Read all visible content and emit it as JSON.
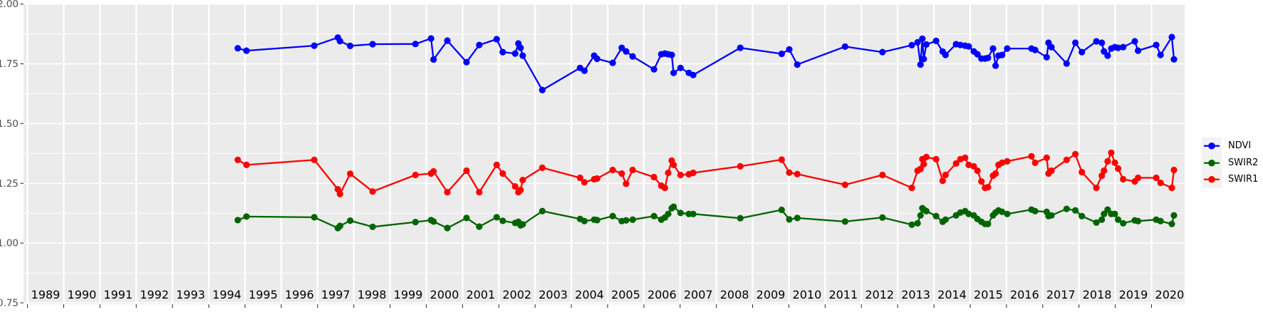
{
  "figure": {
    "title": "",
    "y_axis": {
      "tick_labels": [
        "2.00",
        "1.75",
        "1.50",
        "1.25",
        "1.00",
        "0.75"
      ],
      "tick_values": [
        2.0,
        1.75,
        1.5,
        1.25,
        1.0,
        0.75
      ]
    },
    "x_axis": {
      "year_labels": [
        "1989",
        "1990",
        "1991",
        "1992",
        "1993",
        "1994",
        "1995",
        "1996",
        "1997",
        "1998",
        "1999",
        "2000",
        "2001",
        "2002",
        "2003",
        "2004",
        "2005",
        "2006",
        "2007",
        "2008",
        "2009",
        "2010",
        "2011",
        "2012",
        "2013",
        "2014",
        "2015",
        "2016",
        "2017",
        "2018",
        "2019",
        "2020"
      ]
    },
    "legend": {
      "items": [
        {
          "label": "NDVI",
          "color": "#0000ff"
        },
        {
          "label": "SWIR2",
          "color": "#006400"
        },
        {
          "label": "SWIR1",
          "color": "#ff0000"
        }
      ]
    },
    "colors": {
      "panel_background": "#ebebeb",
      "gridline": "#ffffff",
      "axis_tick_text": "#4d4d4d",
      "year_label_text": "#000000",
      "tick_mark": "#333333",
      "legend_key_background": "#f2f2f2"
    }
  },
  "chart_data": {
    "type": "line",
    "title": "",
    "xlabel": "",
    "ylabel": "",
    "grid": "on",
    "legend_position": "right",
    "xlim": [
      1988.4,
      2020.5
    ],
    "ylim": [
      0.74,
      2.005
    ],
    "y_major_gridlines": [
      0.75,
      1.0,
      1.25,
      1.5,
      1.75,
      2.0
    ],
    "y_minor_gridlines": [
      0.875,
      1.125,
      1.375,
      1.625,
      1.875
    ],
    "x_gridlines_at_year_boundaries": true,
    "x_decimal_years": [
      1994.3,
      1994.54,
      1996.41,
      1997.06,
      1997.12,
      1997.4,
      1998.02,
      1999.2,
      1999.63,
      1999.7,
      2000.08,
      2000.61,
      2000.96,
      2001.44,
      2001.61,
      2001.95,
      2002.04,
      2002.1,
      2002.16,
      2002.7,
      2003.74,
      2003.86,
      2004.13,
      2004.21,
      2004.64,
      2004.89,
      2005.01,
      2005.19,
      2005.78,
      2005.98,
      2006.08,
      2006.17,
      2006.27,
      2006.32,
      2006.51,
      2006.74,
      2006.86,
      2008.16,
      2009.3,
      2009.51,
      2009.73,
      2011.05,
      2012.08,
      2012.89,
      2013.05,
      2013.13,
      2013.18,
      2013.22,
      2013.29,
      2013.56,
      2013.74,
      2013.82,
      2014.11,
      2014.23,
      2014.36,
      2014.46,
      2014.6,
      2014.7,
      2014.81,
      2014.91,
      2014.99,
      2015.13,
      2015.2,
      2015.28,
      2015.38,
      2015.52,
      2016.19,
      2016.29,
      2016.61,
      2016.66,
      2016.74,
      2017.16,
      2017.4,
      2017.58,
      2017.98,
      2018.13,
      2018.19,
      2018.29,
      2018.39,
      2018.49,
      2018.58,
      2018.72,
      2019.04,
      2019.13,
      2019.63,
      2019.75,
      2020.06,
      2020.12
    ],
    "series": [
      {
        "name": "NDVI",
        "color": "#0000ff",
        "values": [
          1.815,
          1.805,
          1.826,
          1.86,
          1.845,
          1.825,
          1.832,
          1.833,
          1.856,
          1.768,
          1.847,
          1.757,
          1.829,
          1.853,
          1.799,
          1.793,
          1.835,
          1.817,
          1.784,
          1.64,
          1.733,
          1.721,
          1.784,
          1.771,
          1.754,
          1.817,
          1.802,
          1.781,
          1.727,
          1.79,
          1.793,
          1.79,
          1.787,
          1.712,
          1.733,
          1.712,
          1.703,
          1.817,
          1.792,
          1.81,
          1.747,
          1.822,
          1.799,
          1.828,
          1.84,
          1.747,
          1.855,
          1.77,
          1.831,
          1.846,
          1.801,
          1.787,
          1.832,
          1.829,
          1.826,
          1.823,
          1.802,
          1.79,
          1.772,
          1.772,
          1.775,
          1.814,
          1.742,
          1.784,
          1.787,
          1.814,
          1.814,
          1.808,
          1.778,
          1.838,
          1.82,
          1.751,
          1.838,
          1.799,
          1.844,
          1.838,
          1.802,
          1.784,
          1.814,
          1.82,
          1.817,
          1.82,
          1.844,
          1.805,
          1.829,
          1.787,
          1.862,
          1.769
        ]
      },
      {
        "name": "SWIR2",
        "color": "#006400",
        "values": [
          1.096,
          1.111,
          1.108,
          1.063,
          1.072,
          1.094,
          1.068,
          1.088,
          1.096,
          1.09,
          1.063,
          1.105,
          1.069,
          1.108,
          1.093,
          1.084,
          1.089,
          1.074,
          1.078,
          1.134,
          1.101,
          1.092,
          1.098,
          1.096,
          1.113,
          1.092,
          1.095,
          1.098,
          1.113,
          1.098,
          1.107,
          1.122,
          1.146,
          1.152,
          1.126,
          1.122,
          1.122,
          1.104,
          1.139,
          1.099,
          1.105,
          1.09,
          1.107,
          1.077,
          1.083,
          1.116,
          1.146,
          1.14,
          1.134,
          1.113,
          1.089,
          1.098,
          1.116,
          1.128,
          1.134,
          1.122,
          1.116,
          1.101,
          1.089,
          1.08,
          1.08,
          1.116,
          1.128,
          1.137,
          1.131,
          1.122,
          1.14,
          1.134,
          1.131,
          1.113,
          1.116,
          1.143,
          1.137,
          1.113,
          1.086,
          1.098,
          1.122,
          1.14,
          1.122,
          1.122,
          1.098,
          1.083,
          1.095,
          1.092,
          1.098,
          1.092,
          1.08,
          1.116
        ]
      },
      {
        "name": "SWIR1",
        "color": "#ff0000",
        "values": [
          1.348,
          1.327,
          1.348,
          1.225,
          1.205,
          1.29,
          1.216,
          1.285,
          1.291,
          1.3,
          1.213,
          1.303,
          1.213,
          1.327,
          1.291,
          1.237,
          1.213,
          1.222,
          1.264,
          1.315,
          1.273,
          1.254,
          1.267,
          1.27,
          1.306,
          1.291,
          1.248,
          1.306,
          1.276,
          1.24,
          1.231,
          1.294,
          1.345,
          1.327,
          1.285,
          1.288,
          1.294,
          1.321,
          1.349,
          1.295,
          1.289,
          1.244,
          1.285,
          1.231,
          1.303,
          1.31,
          1.351,
          1.33,
          1.36,
          1.351,
          1.261,
          1.285,
          1.333,
          1.351,
          1.357,
          1.327,
          1.321,
          1.303,
          1.258,
          1.231,
          1.234,
          1.282,
          1.291,
          1.327,
          1.336,
          1.342,
          1.363,
          1.336,
          1.357,
          1.291,
          1.303,
          1.348,
          1.372,
          1.297,
          1.231,
          1.282,
          1.303,
          1.342,
          1.378,
          1.336,
          1.312,
          1.267,
          1.258,
          1.273,
          1.273,
          1.252,
          1.231,
          1.306
        ]
      }
    ]
  }
}
